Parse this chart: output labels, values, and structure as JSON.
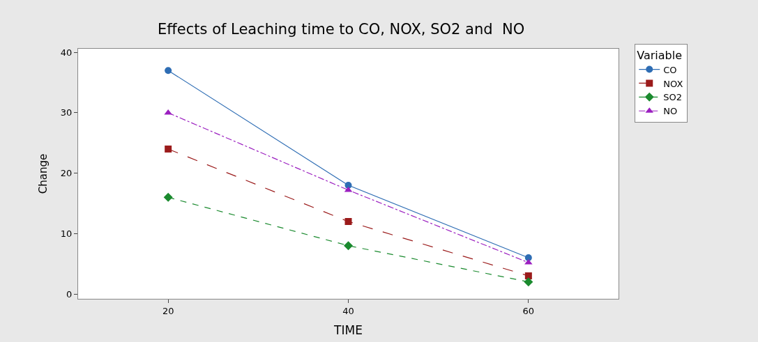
{
  "chart_data": {
    "type": "line",
    "title": "Effects of Leaching time to CO, NOX, SO2 and  NO",
    "xlabel": "TIME",
    "ylabel": "Change",
    "legend_title": "Variable",
    "x": [
      20,
      40,
      60
    ],
    "xlim": [
      10,
      70
    ],
    "xticks": [
      20,
      40,
      60
    ],
    "ylim": [
      -0.8,
      40.6
    ],
    "yticks": [
      0,
      10,
      20,
      30,
      40
    ],
    "legend": "top right",
    "series": [
      {
        "name": "CO",
        "color": "#2e6db4",
        "values": [
          37,
          18,
          6
        ],
        "marker": "circle",
        "line_style": "solid"
      },
      {
        "name": "NOX",
        "color": "#9b1b1b",
        "values": [
          24,
          12,
          3
        ],
        "marker": "square",
        "line_style": "longdash"
      },
      {
        "name": "SO2",
        "color": "#1a8a2e",
        "values": [
          16,
          8,
          2
        ],
        "marker": "diamond",
        "line_style": "dashed"
      },
      {
        "name": "NO",
        "color": "#9b1fc0",
        "values": [
          30,
          17.2,
          5.2
        ],
        "marker": "triangle",
        "line_style": "dashdot"
      }
    ]
  }
}
